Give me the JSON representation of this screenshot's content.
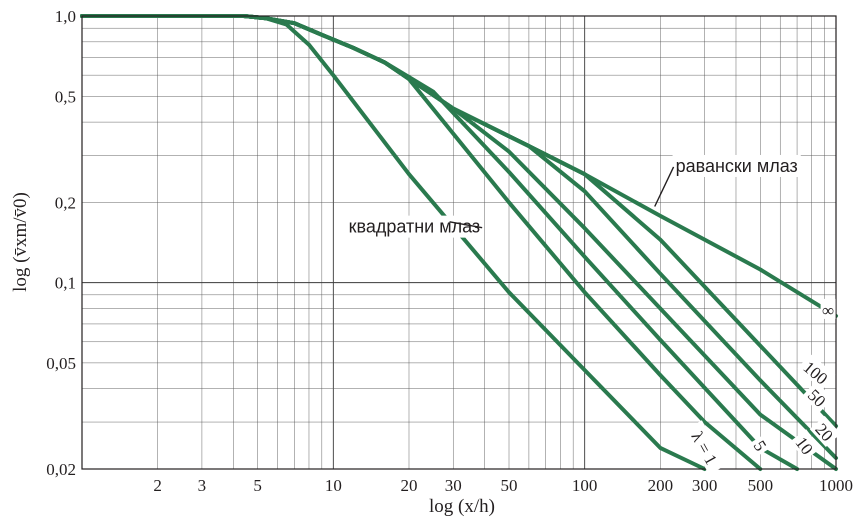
{
  "chart_data": {
    "type": "line",
    "title": "",
    "xlabel": "log (x/h)",
    "ylabel": "log (v̄xm/v̄0)",
    "x_scale": "log",
    "y_scale": "log",
    "xlim": [
      1,
      1000
    ],
    "ylim": [
      0.02,
      1.0
    ],
    "grid": true,
    "x_ticks": [
      {
        "value": 2,
        "label": "2"
      },
      {
        "value": 3,
        "label": "3"
      },
      {
        "value": 5,
        "label": "5"
      },
      {
        "value": 10,
        "label": "10"
      },
      {
        "value": 20,
        "label": "20"
      },
      {
        "value": 30,
        "label": "30"
      },
      {
        "value": 50,
        "label": "50"
      },
      {
        "value": 100,
        "label": "100"
      },
      {
        "value": 200,
        "label": "200"
      },
      {
        "value": 300,
        "label": "300"
      },
      {
        "value": 500,
        "label": "500"
      },
      {
        "value": 1000,
        "label": "1000"
      }
    ],
    "y_ticks": [
      {
        "value": 1.0,
        "label": "1,0"
      },
      {
        "value": 0.5,
        "label": "0,5"
      },
      {
        "value": 0.2,
        "label": "0,2"
      },
      {
        "value": 0.1,
        "label": "0,1"
      },
      {
        "value": 0.05,
        "label": "0,05"
      },
      {
        "value": 0.02,
        "label": "0,02"
      }
    ],
    "line_color": "#2a7a4e",
    "series": [
      {
        "name": "λ = 1",
        "points": [
          [
            1,
            1
          ],
          [
            4.4,
            1
          ],
          [
            5.4,
            0.98
          ],
          [
            6.5,
            0.93
          ],
          [
            8,
            0.78
          ],
          [
            10,
            0.6
          ],
          [
            20,
            0.255
          ],
          [
            50,
            0.092
          ],
          [
            100,
            0.047
          ],
          [
            200,
            0.024
          ],
          [
            300,
            0.0165
          ]
        ]
      },
      {
        "name": "5",
        "points": [
          [
            1,
            1
          ],
          [
            4.4,
            1
          ],
          [
            5.4,
            0.98
          ],
          [
            7,
            0.94
          ],
          [
            9,
            0.85
          ],
          [
            12,
            0.76
          ],
          [
            16,
            0.67
          ],
          [
            20,
            0.58
          ],
          [
            50,
            0.2
          ],
          [
            100,
            0.092
          ],
          [
            200,
            0.045
          ],
          [
            300,
            0.03
          ],
          [
            500,
            0.019
          ]
        ]
      },
      {
        "name": "10",
        "points": [
          [
            1,
            1
          ],
          [
            4.4,
            1
          ],
          [
            5.4,
            0.98
          ],
          [
            7,
            0.94
          ],
          [
            9,
            0.85
          ],
          [
            12,
            0.76
          ],
          [
            16,
            0.67
          ],
          [
            25,
            0.52
          ],
          [
            50,
            0.26
          ],
          [
            100,
            0.125
          ],
          [
            200,
            0.061
          ],
          [
            500,
            0.024
          ],
          [
            700,
            0.0175
          ]
        ]
      },
      {
        "name": "20",
        "points": [
          [
            1,
            1
          ],
          [
            4.4,
            1
          ],
          [
            5.4,
            0.98
          ],
          [
            7,
            0.94
          ],
          [
            9,
            0.85
          ],
          [
            12,
            0.76
          ],
          [
            16,
            0.67
          ],
          [
            30,
            0.45
          ],
          [
            50,
            0.31
          ],
          [
            100,
            0.16
          ],
          [
            200,
            0.08
          ],
          [
            500,
            0.032
          ],
          [
            1000,
            0.016
          ]
        ]
      },
      {
        "name": "50",
        "points": [
          [
            1,
            1
          ],
          [
            4.4,
            1
          ],
          [
            5.4,
            0.98
          ],
          [
            7,
            0.94
          ],
          [
            9,
            0.85
          ],
          [
            12,
            0.76
          ],
          [
            16,
            0.67
          ],
          [
            30,
            0.45
          ],
          [
            60,
            0.325
          ],
          [
            100,
            0.22
          ],
          [
            200,
            0.108
          ],
          [
            500,
            0.043
          ],
          [
            1000,
            0.022
          ]
        ]
      },
      {
        "name": "100",
        "points": [
          [
            1,
            1
          ],
          [
            4.4,
            1
          ],
          [
            5.4,
            0.98
          ],
          [
            7,
            0.94
          ],
          [
            9,
            0.85
          ],
          [
            12,
            0.76
          ],
          [
            16,
            0.67
          ],
          [
            30,
            0.45
          ],
          [
            60,
            0.325
          ],
          [
            100,
            0.255
          ],
          [
            200,
            0.145
          ],
          [
            500,
            0.058
          ],
          [
            1000,
            0.029
          ]
        ]
      },
      {
        "name": "∞",
        "points": [
          [
            1,
            1
          ],
          [
            4.4,
            1
          ],
          [
            5.4,
            0.98
          ],
          [
            7,
            0.94
          ],
          [
            9,
            0.85
          ],
          [
            12,
            0.76
          ],
          [
            16,
            0.67
          ],
          [
            30,
            0.45
          ],
          [
            60,
            0.325
          ],
          [
            100,
            0.255
          ],
          [
            200,
            0.178
          ],
          [
            500,
            0.112
          ],
          [
            1000,
            0.075
          ]
        ]
      }
    ],
    "curve_labels": [
      {
        "text": "λ = 1",
        "x": 300,
        "y": 0.024,
        "rotate": 61
      },
      {
        "text": "5",
        "x": 500,
        "y": 0.0245,
        "rotate": 58
      },
      {
        "text": "10",
        "x": 750,
        "y": 0.0245,
        "rotate": 53
      },
      {
        "text": "20",
        "x": 900,
        "y": 0.0275,
        "rotate": 48
      },
      {
        "text": "50",
        "x": 840,
        "y": 0.037,
        "rotate": 44
      },
      {
        "text": "100",
        "x": 830,
        "y": 0.046,
        "rotate": 40
      },
      {
        "text": "∞",
        "x": 930,
        "y": 0.079,
        "rotate": 0
      }
    ],
    "annotations": [
      {
        "text": "равански млаз",
        "x": 230,
        "y": 0.26,
        "arrow_to": [
          190,
          0.193
        ]
      },
      {
        "text": "квадратни млаз",
        "x": 11.5,
        "y": 0.154,
        "arrow_to": [
          29,
          0.169
        ]
      }
    ]
  }
}
